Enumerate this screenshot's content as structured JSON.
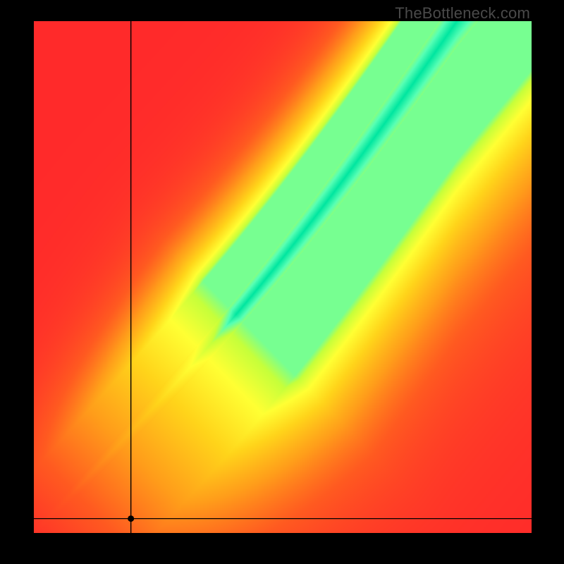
{
  "watermark": {
    "text": "TheBottleneck.com",
    "color": "#4a4a4a",
    "fontsize": 22
  },
  "plot": {
    "type": "heatmap",
    "grid_size": 120,
    "pixel_outer_border_color": "#000000",
    "background_color": "#000000",
    "xlim": [
      0,
      1
    ],
    "ylim": [
      0,
      1
    ],
    "axis_line_color": "#000000",
    "axis_line_width": 1.4,
    "xaxis_y": 0.028,
    "yaxis_x": 0.195,
    "marker": {
      "u": 0.195,
      "v": 0.028,
      "radius": 4.5,
      "color": "#000000"
    },
    "ridge": {
      "start": {
        "u": 0.0,
        "v": 0.0
      },
      "end": {
        "u": 0.85,
        "v": 1.0
      },
      "curvature_dip": 0.1,
      "comment": "Green band follows a curve from bottom-left corner to near top-right; below the 45° line."
    },
    "band": {
      "half_width_min": 0.01,
      "half_width_max": 0.05,
      "softness": 0.02
    },
    "gradient": {
      "stops_hex": [
        "#ff2a2a",
        "#ff5a20",
        "#ff9d1a",
        "#ffd41a",
        "#ffff33",
        "#c6ff3a",
        "#57ffb4",
        "#00e6a0"
      ],
      "stops_t": [
        0.0,
        0.22,
        0.42,
        0.62,
        0.78,
        0.88,
        0.95,
        1.0
      ]
    },
    "asymmetry": {
      "upper_falloff_scale": 0.32,
      "lower_falloff_scale": 0.68,
      "comment": "Heatmap falls off faster above the ridge than below it."
    }
  }
}
